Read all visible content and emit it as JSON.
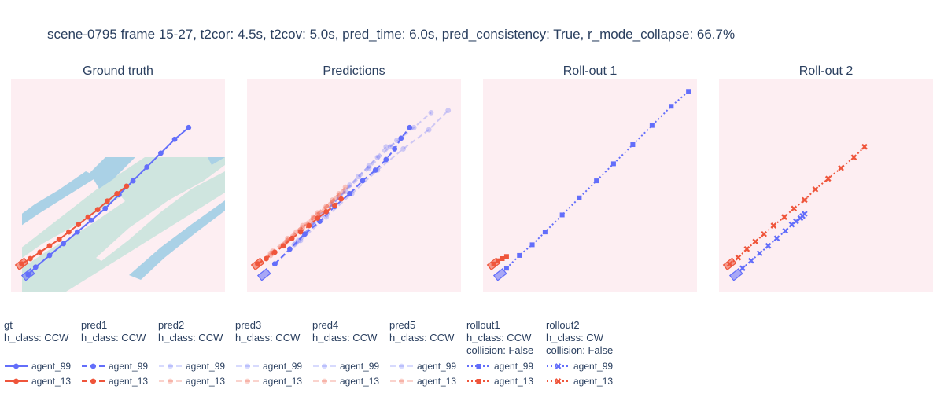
{
  "title": "scene-0795 frame 15-27, t2cor: 4.5s, t2cov: 5.0s, pred_time: 6.0s, pred_consistency: True, r_mode_collapse: 66.7%",
  "colors": {
    "background": "#fdeef2",
    "lane": "#cfe5df",
    "water": "#aad1e6",
    "agent_99": "#636efa",
    "agent_13": "#ef553b"
  },
  "chart_data": [
    {
      "type": "line",
      "title": "Ground truth",
      "xlim": [
        0,
        100
      ],
      "ylim": [
        0,
        100
      ],
      "series": [
        {
          "name": "agent_99",
          "legend": "gt",
          "style": "solid",
          "marker": "circle",
          "opacity": 1,
          "x": [
            8,
            11.5,
            18,
            24.5,
            31,
            37.5,
            44,
            50.5,
            57,
            63.5,
            70,
            76.5,
            83
          ],
          "y": [
            8,
            11.5,
            17,
            22.5,
            28,
            33.5,
            39,
            45.5,
            52,
            58.5,
            65,
            71.5,
            77
          ]
        },
        {
          "name": "agent_13",
          "legend": "gt",
          "style": "solid",
          "marker": "circle",
          "opacity": 1,
          "x": [
            5,
            9,
            13.5,
            18,
            22.5,
            27,
            31.5,
            36,
            40.5,
            45,
            49.5,
            54
          ],
          "y": [
            13,
            15.5,
            18.5,
            21.5,
            24.5,
            28,
            31.5,
            35,
            38.5,
            42.5,
            46,
            49.5
          ]
        }
      ]
    },
    {
      "type": "line",
      "title": "Predictions",
      "xlim": [
        0,
        100
      ],
      "ylim": [
        0,
        100
      ],
      "series": [
        {
          "name": "agent_99",
          "legend": "pred5",
          "style": "dash",
          "marker": "circle",
          "opacity": 0.3,
          "x": [
            13,
            25,
            37,
            49,
            61,
            73,
            85,
            94
          ],
          "y": [
            13,
            24,
            35,
            46,
            57,
            67,
            76,
            85
          ]
        },
        {
          "name": "agent_99",
          "legend": "pred4",
          "style": "dash",
          "marker": "circle",
          "opacity": 0.3,
          "x": [
            13,
            24,
            35,
            46,
            57,
            67,
            78,
            86
          ],
          "y": [
            13,
            24,
            36,
            47,
            58,
            68,
            77,
            84
          ]
        },
        {
          "name": "agent_99",
          "legend": "pred3",
          "style": "dash",
          "marker": "circle",
          "opacity": 0.3,
          "x": [
            13,
            23,
            33,
            43,
            52,
            61,
            70
          ],
          "y": [
            13,
            23,
            34,
            44,
            54,
            63,
            71
          ]
        },
        {
          "name": "agent_99",
          "legend": "pred2",
          "style": "dash",
          "marker": "circle",
          "opacity": 0.3,
          "x": [
            13,
            22,
            31,
            40,
            48,
            57,
            65
          ],
          "y": [
            13,
            22,
            32,
            41,
            50,
            59,
            68
          ]
        },
        {
          "name": "agent_99",
          "legend": "pred1",
          "style": "dash",
          "marker": "circle",
          "opacity": 1,
          "x": [
            13,
            20,
            27,
            34,
            41,
            48,
            54,
            60,
            65,
            69,
            72,
            76
          ],
          "y": [
            13,
            20,
            27,
            33,
            40,
            46,
            52,
            57,
            62,
            67,
            72,
            77
          ]
        },
        {
          "name": "agent_13",
          "legend": "pred5",
          "style": "dash",
          "marker": "circle",
          "opacity": 0.3,
          "x": [
            5,
            12,
            19,
            26,
            33,
            40,
            46
          ],
          "y": [
            13,
            19,
            25,
            31,
            37,
            43,
            49
          ]
        },
        {
          "name": "agent_13",
          "legend": "pred4",
          "style": "dash",
          "marker": "circle",
          "opacity": 0.3,
          "x": [
            5,
            12,
            19,
            26,
            33,
            39,
            45
          ],
          "y": [
            13,
            18,
            24,
            30,
            36,
            41,
            47
          ]
        },
        {
          "name": "agent_13",
          "legend": "pred3",
          "style": "dash",
          "marker": "circle",
          "opacity": 0.3,
          "x": [
            5,
            11,
            18,
            25,
            31,
            37,
            43
          ],
          "y": [
            13,
            18,
            23,
            29,
            35,
            40,
            46
          ]
        },
        {
          "name": "agent_13",
          "legend": "pred2",
          "style": "dash",
          "marker": "circle",
          "opacity": 0.3,
          "x": [
            5,
            11,
            17,
            23,
            30,
            36,
            42
          ],
          "y": [
            13,
            17,
            22,
            28,
            33,
            38,
            44
          ]
        },
        {
          "name": "agent_13",
          "legend": "pred1",
          "style": "dash",
          "marker": "circle",
          "opacity": 1,
          "x": [
            5,
            9,
            13,
            17,
            21,
            25,
            29,
            33,
            37,
            41,
            44
          ],
          "y": [
            13,
            15.5,
            18.5,
            21.5,
            25,
            28,
            31,
            34.5,
            37.5,
            40.5,
            43.5
          ]
        }
      ]
    },
    {
      "type": "line",
      "title": "Roll-out 1",
      "xlim": [
        0,
        100
      ],
      "ylim": [
        0,
        100
      ],
      "series": [
        {
          "name": "agent_99",
          "legend": "rollout1",
          "style": "dot",
          "marker": "square",
          "opacity": 1,
          "x": [
            11,
            17,
            23,
            29,
            37,
            45,
            53,
            61,
            70,
            79,
            88,
            96
          ],
          "y": [
            11,
            17,
            22,
            28,
            36,
            44,
            52,
            60,
            69,
            78,
            87,
            94
          ]
        },
        {
          "name": "agent_13",
          "legend": "rollout1",
          "style": "dot",
          "marker": "square",
          "opacity": 1,
          "x": [
            5,
            7,
            9,
            11
          ],
          "y": [
            13,
            14.5,
            15.5,
            16.5
          ]
        }
      ]
    },
    {
      "type": "line",
      "title": "Roll-out 2",
      "xlim": [
        0,
        100
      ],
      "ylim": [
        0,
        100
      ],
      "series": [
        {
          "name": "agent_99",
          "legend": "rollout2",
          "style": "dot",
          "marker": "x",
          "opacity": 1,
          "x": [
            11,
            15,
            19,
            23,
            27,
            31,
            34,
            36,
            38,
            39,
            40
          ],
          "y": [
            11,
            14.5,
            18,
            21.5,
            25,
            28.5,
            31.5,
            33,
            34.5,
            35.5,
            36.5
          ]
        },
        {
          "name": "agent_13",
          "legend": "rollout2",
          "style": "dot",
          "marker": "x",
          "opacity": 1,
          "x": [
            5,
            9,
            13,
            17,
            21,
            25.5,
            30.5,
            35,
            40,
            45,
            51,
            57,
            63,
            68
          ],
          "y": [
            13,
            16,
            20,
            23.5,
            27,
            31,
            35,
            39,
            43,
            48,
            53,
            58,
            63,
            68
          ]
        }
      ]
    }
  ],
  "legend": {
    "agents": [
      "agent_99",
      "agent_13"
    ],
    "groups": [
      {
        "key": "gt",
        "lines": [
          "gt",
          "h_class: CCW"
        ],
        "style": "solid",
        "marker": "circle",
        "opacity": 1
      },
      {
        "key": "pred1",
        "lines": [
          "pred1",
          "h_class: CCW"
        ],
        "style": "dash",
        "marker": "circle",
        "opacity": 1
      },
      {
        "key": "pred2",
        "lines": [
          "pred2",
          "h_class: CCW"
        ],
        "style": "dash",
        "marker": "circle",
        "opacity": 0.25
      },
      {
        "key": "pred3",
        "lines": [
          "pred3",
          "h_class: CCW"
        ],
        "style": "dash",
        "marker": "circle",
        "opacity": 0.25
      },
      {
        "key": "pred4",
        "lines": [
          "pred4",
          "h_class: CCW"
        ],
        "style": "dash",
        "marker": "circle",
        "opacity": 0.25
      },
      {
        "key": "pred5",
        "lines": [
          "pred5",
          "h_class: CCW"
        ],
        "style": "dash",
        "marker": "circle",
        "opacity": 0.25
      },
      {
        "key": "rollout1",
        "lines": [
          "rollout1",
          "h_class: CCW",
          "collision: False"
        ],
        "style": "dot",
        "marker": "square",
        "opacity": 1
      },
      {
        "key": "rollout2",
        "lines": [
          "rollout2",
          "h_class: CW",
          "collision: False"
        ],
        "style": "dot",
        "marker": "x",
        "opacity": 1
      }
    ]
  }
}
